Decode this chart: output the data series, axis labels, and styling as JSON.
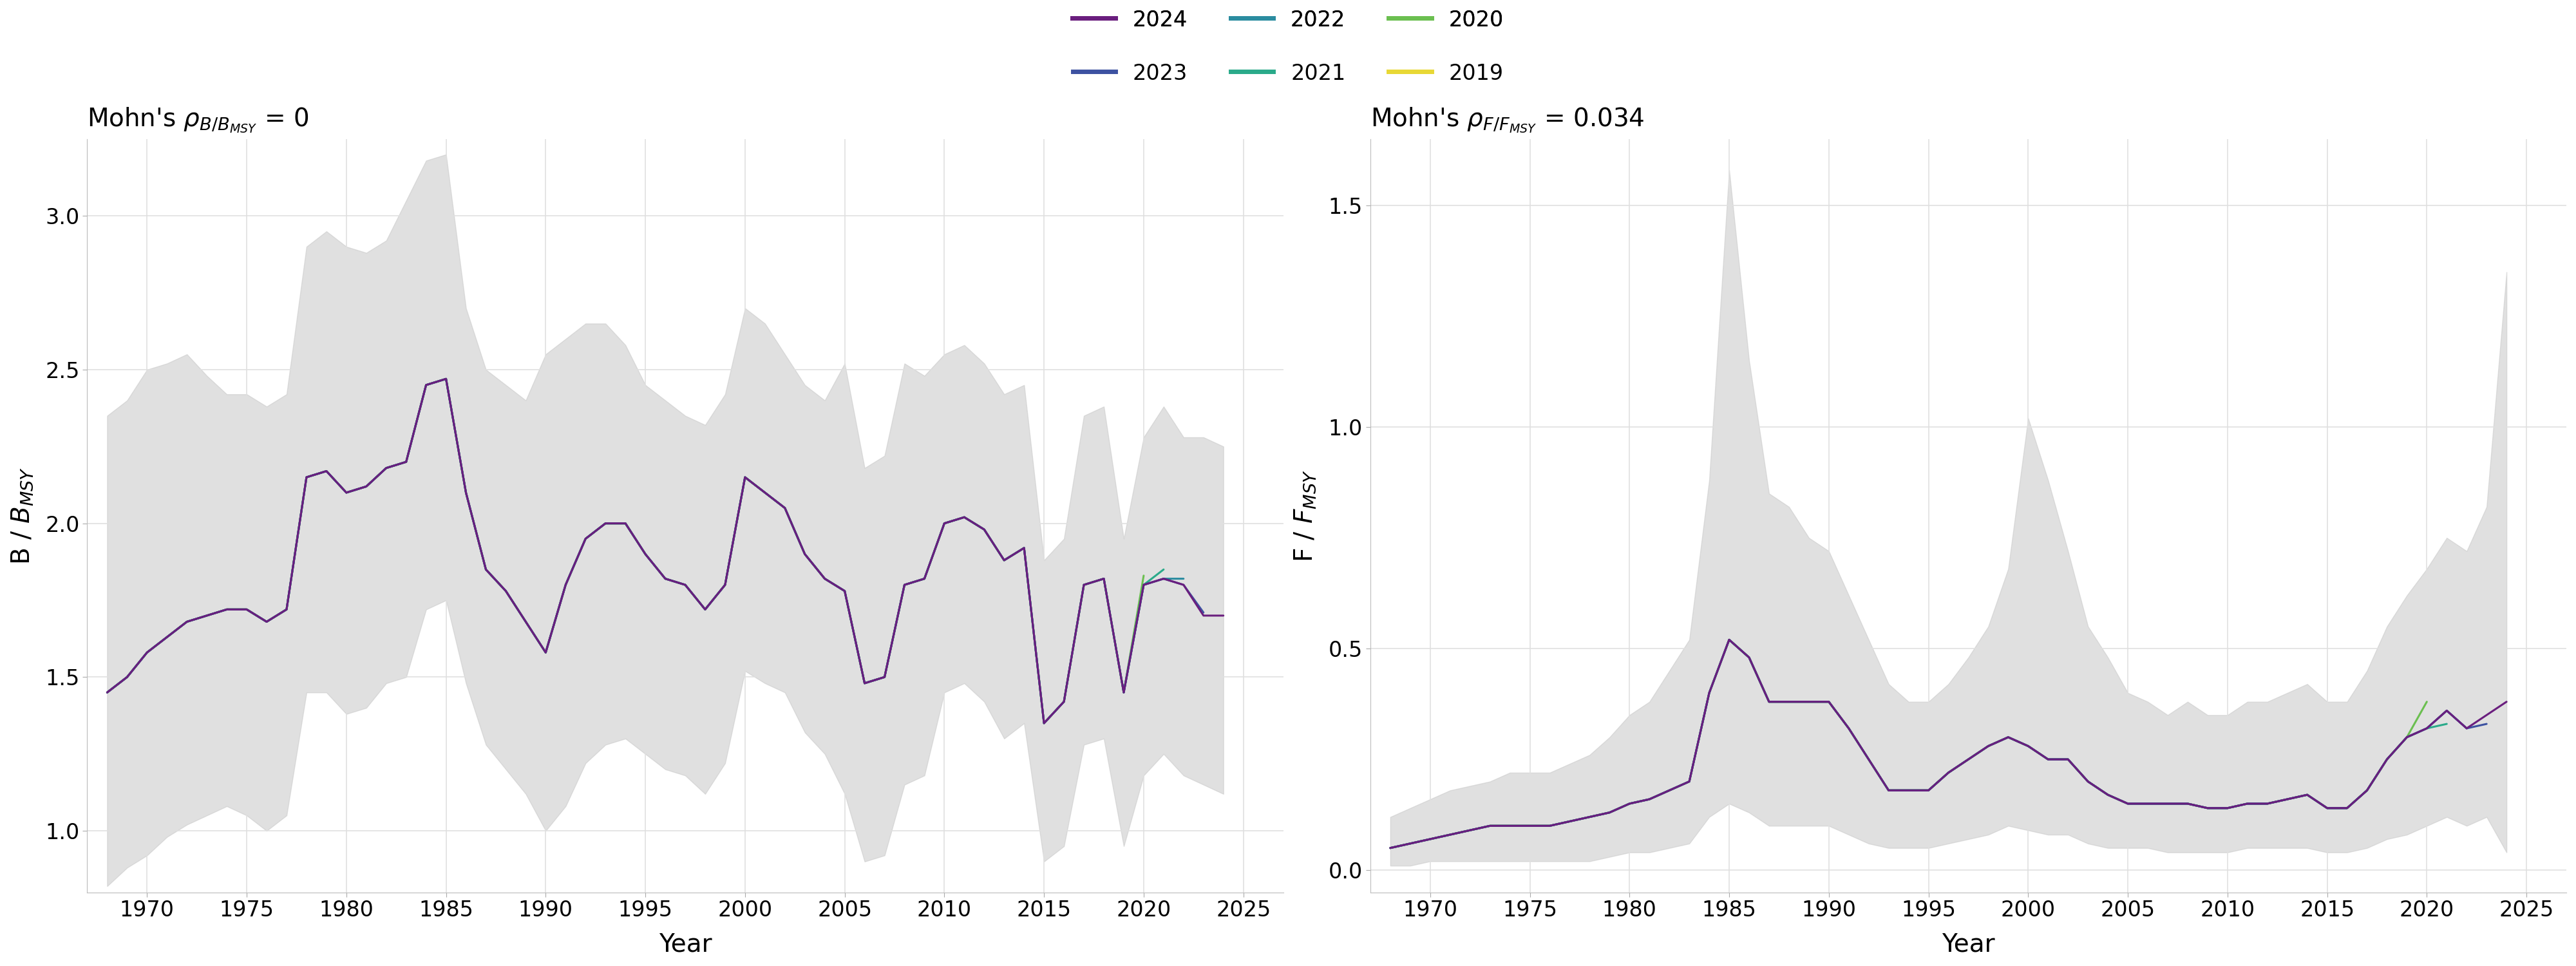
{
  "years": [
    1968,
    1969,
    1970,
    1971,
    1972,
    1973,
    1974,
    1975,
    1976,
    1977,
    1978,
    1979,
    1980,
    1981,
    1982,
    1983,
    1984,
    1985,
    1986,
    1987,
    1988,
    1989,
    1990,
    1991,
    1992,
    1993,
    1994,
    1995,
    1996,
    1997,
    1998,
    1999,
    2000,
    2001,
    2002,
    2003,
    2004,
    2005,
    2006,
    2007,
    2008,
    2009,
    2010,
    2011,
    2012,
    2013,
    2014,
    2015,
    2016,
    2017,
    2018,
    2019,
    2020,
    2021,
    2022,
    2023,
    2024
  ],
  "B_upper": [
    2.35,
    2.4,
    2.5,
    2.52,
    2.55,
    2.48,
    2.42,
    2.42,
    2.38,
    2.42,
    2.9,
    2.95,
    2.9,
    2.88,
    2.92,
    3.05,
    3.18,
    3.2,
    2.7,
    2.5,
    2.45,
    2.4,
    2.55,
    2.6,
    2.65,
    2.65,
    2.58,
    2.45,
    2.4,
    2.35,
    2.32,
    2.42,
    2.7,
    2.65,
    2.55,
    2.45,
    2.4,
    2.52,
    2.18,
    2.22,
    2.52,
    2.48,
    2.55,
    2.58,
    2.52,
    2.42,
    2.45,
    1.88,
    1.95,
    2.35,
    2.38,
    1.95,
    2.28,
    2.38,
    2.28,
    2.28,
    2.25
  ],
  "B_lower": [
    0.82,
    0.88,
    0.92,
    0.98,
    1.02,
    1.05,
    1.08,
    1.05,
    1.0,
    1.05,
    1.45,
    1.45,
    1.38,
    1.4,
    1.48,
    1.5,
    1.72,
    1.75,
    1.48,
    1.28,
    1.2,
    1.12,
    1.0,
    1.08,
    1.22,
    1.28,
    1.3,
    1.25,
    1.2,
    1.18,
    1.12,
    1.22,
    1.52,
    1.48,
    1.45,
    1.32,
    1.25,
    1.12,
    0.9,
    0.92,
    1.15,
    1.18,
    1.45,
    1.48,
    1.42,
    1.3,
    1.35,
    0.9,
    0.95,
    1.28,
    1.3,
    0.95,
    1.18,
    1.25,
    1.18,
    1.15,
    1.12
  ],
  "F_upper": [
    0.12,
    0.14,
    0.16,
    0.18,
    0.19,
    0.2,
    0.22,
    0.22,
    0.22,
    0.24,
    0.26,
    0.3,
    0.35,
    0.38,
    0.45,
    0.52,
    0.88,
    1.58,
    1.15,
    0.85,
    0.82,
    0.75,
    0.72,
    0.62,
    0.52,
    0.42,
    0.38,
    0.38,
    0.42,
    0.48,
    0.55,
    0.68,
    1.02,
    0.88,
    0.72,
    0.55,
    0.48,
    0.4,
    0.38,
    0.35,
    0.38,
    0.35,
    0.35,
    0.38,
    0.38,
    0.4,
    0.42,
    0.38,
    0.38,
    0.45,
    0.55,
    0.62,
    0.68,
    0.75,
    0.72,
    0.82,
    1.35
  ],
  "F_lower": [
    0.01,
    0.01,
    0.02,
    0.02,
    0.02,
    0.02,
    0.02,
    0.02,
    0.02,
    0.02,
    0.02,
    0.03,
    0.04,
    0.04,
    0.05,
    0.06,
    0.12,
    0.15,
    0.13,
    0.1,
    0.1,
    0.1,
    0.1,
    0.08,
    0.06,
    0.05,
    0.05,
    0.05,
    0.06,
    0.07,
    0.08,
    0.1,
    0.09,
    0.08,
    0.08,
    0.06,
    0.05,
    0.05,
    0.05,
    0.04,
    0.04,
    0.04,
    0.04,
    0.05,
    0.05,
    0.05,
    0.05,
    0.04,
    0.04,
    0.05,
    0.07,
    0.08,
    0.1,
    0.12,
    0.1,
    0.12,
    0.04
  ],
  "B_base": [
    1.45,
    1.5,
    1.58,
    1.63,
    1.68,
    1.7,
    1.72,
    1.72,
    1.68,
    1.72,
    2.15,
    2.17,
    2.1,
    2.12,
    2.18,
    2.2,
    2.45,
    2.47,
    2.1,
    1.85,
    1.78,
    1.68,
    1.58,
    1.8,
    1.95,
    2.0,
    2.0,
    1.9,
    1.82,
    1.8,
    1.72,
    1.8,
    2.15,
    2.1,
    2.05,
    1.9,
    1.82,
    1.78,
    1.48,
    1.5,
    1.8,
    1.82,
    2.0,
    2.02,
    1.98,
    1.88,
    1.92,
    1.35,
    1.42,
    1.8,
    1.82,
    1.45,
    1.72,
    1.8,
    1.72,
    1.7,
    1.7
  ],
  "F_base": [
    0.05,
    0.06,
    0.07,
    0.08,
    0.09,
    0.1,
    0.1,
    0.1,
    0.1,
    0.11,
    0.12,
    0.13,
    0.15,
    0.16,
    0.18,
    0.2,
    0.4,
    0.52,
    0.48,
    0.38,
    0.38,
    0.38,
    0.38,
    0.32,
    0.25,
    0.18,
    0.18,
    0.18,
    0.22,
    0.25,
    0.28,
    0.3,
    0.28,
    0.25,
    0.25,
    0.2,
    0.17,
    0.15,
    0.15,
    0.15,
    0.15,
    0.14,
    0.14,
    0.15,
    0.15,
    0.16,
    0.17,
    0.14,
    0.14,
    0.18,
    0.25,
    0.3,
    0.32,
    0.36,
    0.32,
    0.35,
    0.38
  ],
  "series_end_years": {
    "2019": 51,
    "2020": 52,
    "2021": 53,
    "2022": 54,
    "2023": 55,
    "2024": 56
  },
  "B_tail": {
    "2019": [
      1.45
    ],
    "2020": [
      1.45,
      1.83
    ],
    "2021": [
      1.45,
      1.8,
      1.85
    ],
    "2022": [
      1.45,
      1.8,
      1.82,
      1.82
    ],
    "2023": [
      1.45,
      1.8,
      1.82,
      1.8,
      1.71
    ],
    "2024": [
      1.45,
      1.8,
      1.82,
      1.8,
      1.7,
      1.7
    ]
  },
  "F_tail": {
    "2019": [
      0.3
    ],
    "2020": [
      0.3,
      0.38
    ],
    "2021": [
      0.3,
      0.32,
      0.33
    ],
    "2022": [
      0.3,
      0.32,
      0.36,
      null
    ],
    "2023": [
      0.3,
      0.32,
      0.36,
      0.32,
      0.33
    ],
    "2024": [
      0.3,
      0.32,
      0.36,
      0.32,
      0.35,
      0.38
    ]
  },
  "legend_order": [
    "2024",
    "2022",
    "2020",
    "2023",
    "2021",
    "2019"
  ],
  "xlabel": "Year",
  "B_ylim": [
    0.8,
    3.25
  ],
  "F_ylim": [
    -0.05,
    1.65
  ],
  "xlim": [
    1967,
    2027
  ],
  "background_color": "#ffffff",
  "grid_color": "#e0e0e0",
  "band_color": "#c8c8c8",
  "line_width": 2.2,
  "legend_colors": {
    "2024": "#6a1e7e",
    "2023": "#3d52a1",
    "2022": "#2b8ca0",
    "2021": "#2aaa8a",
    "2020": "#6bbf50",
    "2019": "#e8d835"
  }
}
